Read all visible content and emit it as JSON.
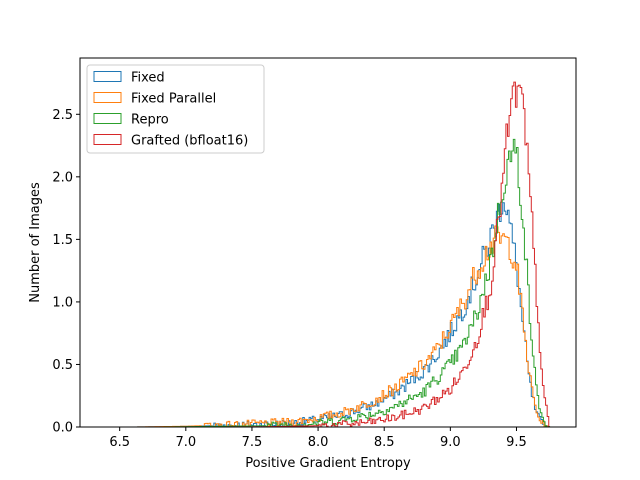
{
  "chart_data": {
    "type": "histogram-step",
    "xlabel": "Positive Gradient Entropy",
    "ylabel": "Number of Images",
    "xlim": [
      6.2,
      9.95
    ],
    "ylim": [
      0.0,
      2.95
    ],
    "xticks": [
      6.5,
      7.0,
      7.5,
      8.0,
      8.5,
      9.0,
      9.5
    ],
    "xtick_labels": [
      "6.5",
      "7.0",
      "7.5",
      "8.0",
      "8.5",
      "9.0",
      "9.5"
    ],
    "yticks": [
      0.0,
      0.5,
      1.0,
      1.5,
      2.0,
      2.5
    ],
    "ytick_labels": [
      "0.0",
      "0.5",
      "1.0",
      "1.5",
      "2.0",
      "2.5"
    ],
    "grid": false,
    "legend_position": "upper-left",
    "series": [
      {
        "name": "Fixed",
        "color": "#1f77b4",
        "x": [
          6.6,
          7.0,
          7.4,
          7.8,
          8.0,
          8.2,
          8.4,
          8.6,
          8.8,
          8.9,
          9.0,
          9.1,
          9.2,
          9.25,
          9.3,
          9.35,
          9.4,
          9.43,
          9.46,
          9.5,
          9.55,
          9.6,
          9.65,
          9.7,
          9.75
        ],
        "values": [
          0.0,
          0.005,
          0.015,
          0.03,
          0.06,
          0.1,
          0.17,
          0.28,
          0.45,
          0.58,
          0.75,
          0.95,
          1.2,
          1.35,
          1.5,
          1.65,
          1.85,
          1.75,
          1.55,
          1.3,
          0.8,
          0.35,
          0.1,
          0.02,
          0.0
        ]
      },
      {
        "name": "Fixed Parallel",
        "color": "#ff7f0e",
        "x": [
          6.6,
          7.0,
          7.4,
          7.8,
          8.0,
          8.2,
          8.4,
          8.6,
          8.8,
          8.9,
          9.0,
          9.1,
          9.2,
          9.25,
          9.3,
          9.35,
          9.4,
          9.45,
          9.5,
          9.55,
          9.6,
          9.65,
          9.7,
          9.75
        ],
        "values": [
          0.0,
          0.006,
          0.02,
          0.04,
          0.07,
          0.12,
          0.2,
          0.32,
          0.5,
          0.62,
          0.8,
          1.0,
          1.25,
          1.35,
          1.45,
          1.5,
          1.5,
          1.45,
          1.3,
          0.85,
          0.4,
          0.12,
          0.02,
          0.0
        ]
      },
      {
        "name": "Repro",
        "color": "#2ca02c",
        "x": [
          6.8,
          7.2,
          7.6,
          8.0,
          8.2,
          8.4,
          8.6,
          8.8,
          9.0,
          9.1,
          9.2,
          9.3,
          9.35,
          9.4,
          9.45,
          9.5,
          9.55,
          9.6,
          9.65,
          9.7,
          9.75
        ],
        "values": [
          0.0,
          0.005,
          0.01,
          0.03,
          0.06,
          0.1,
          0.17,
          0.28,
          0.5,
          0.65,
          0.9,
          1.3,
          1.6,
          1.95,
          2.15,
          2.2,
          1.7,
          0.9,
          0.3,
          0.05,
          0.0
        ]
      },
      {
        "name": "Grafted (bfloat16)",
        "color": "#d62728",
        "x": [
          7.2,
          7.6,
          8.0,
          8.2,
          8.4,
          8.6,
          8.8,
          9.0,
          9.1,
          9.2,
          9.3,
          9.35,
          9.4,
          9.45,
          9.5,
          9.55,
          9.6,
          9.65,
          9.7,
          9.75
        ],
        "values": [
          0.0,
          0.002,
          0.01,
          0.02,
          0.04,
          0.08,
          0.15,
          0.3,
          0.45,
          0.7,
          1.1,
          1.5,
          2.0,
          2.5,
          2.7,
          2.55,
          1.9,
          1.1,
          0.3,
          0.0
        ]
      }
    ]
  }
}
